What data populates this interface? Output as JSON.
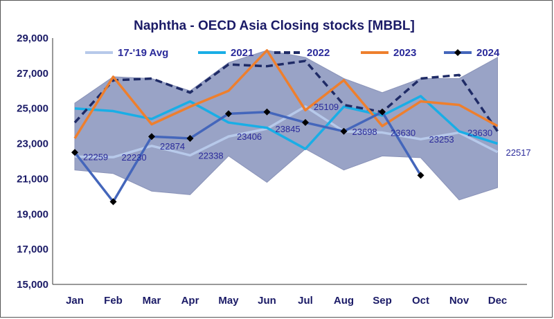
{
  "chart_data": {
    "type": "line",
    "title": "Naphtha - OECD Asia Closing stocks [MBBL]",
    "categories": [
      "Jan",
      "Feb",
      "Mar",
      "Apr",
      "May",
      "Jun",
      "Jul",
      "Aug",
      "Sep",
      "Oct",
      "Nov",
      "Dec"
    ],
    "ylim": [
      15000,
      29000
    ],
    "yticks": [
      15000,
      17000,
      19000,
      21000,
      23000,
      25000,
      27000,
      29000
    ],
    "ytick_labels": [
      "15,000",
      "17,000",
      "19,000",
      "21,000",
      "23,000",
      "25,000",
      "27,000",
      "29,000"
    ],
    "legend_position": "top",
    "grid": false,
    "range_band": {
      "upper": [
        25300,
        26800,
        26700,
        26000,
        27600,
        28300,
        27900,
        26700,
        25900,
        26700,
        26700,
        27900
      ],
      "lower": [
        21500,
        21300,
        20300,
        20100,
        22300,
        20800,
        22700,
        21500,
        22300,
        22200,
        19800,
        20500
      ],
      "color": "#99a3c6"
    },
    "series": [
      {
        "name": "17-'19 Avg",
        "color": "#b7c9ea",
        "style": "solid",
        "marker": "none",
        "values": [
          22259,
          22230,
          22874,
          22338,
          23406,
          23845,
          25109,
          23698,
          23630,
          23253,
          23630,
          22517
        ],
        "data_labels": [
          "22259",
          "22230",
          "22874",
          "22338",
          "23406",
          "23845",
          "25109",
          "23698",
          "23630",
          "23253",
          "23630",
          "22517"
        ]
      },
      {
        "name": "2021",
        "color": "#19aee6",
        "style": "solid",
        "marker": "none",
        "values": [
          25000,
          24850,
          24400,
          25400,
          24200,
          23900,
          22700,
          25100,
          24600,
          25700,
          23700,
          23000
        ]
      },
      {
        "name": "2022",
        "color": "#1f2b66",
        "style": "dashed",
        "marker": "none",
        "values": [
          24200,
          26600,
          26700,
          25900,
          27500,
          27400,
          27700,
          25200,
          24800,
          26700,
          26900,
          23700
        ]
      },
      {
        "name": "2023",
        "color": "#ee7f2d",
        "style": "solid",
        "marker": "none",
        "values": [
          23300,
          26800,
          24100,
          25100,
          26000,
          28300,
          24900,
          26600,
          24000,
          25400,
          25200,
          24000
        ]
      },
      {
        "name": "2024",
        "color": "#4466bb",
        "style": "solid",
        "marker": "diamond",
        "values": [
          22500,
          19700,
          23400,
          23300,
          24700,
          24800,
          24200,
          23700,
          24800,
          21200,
          null,
          null
        ]
      }
    ]
  }
}
